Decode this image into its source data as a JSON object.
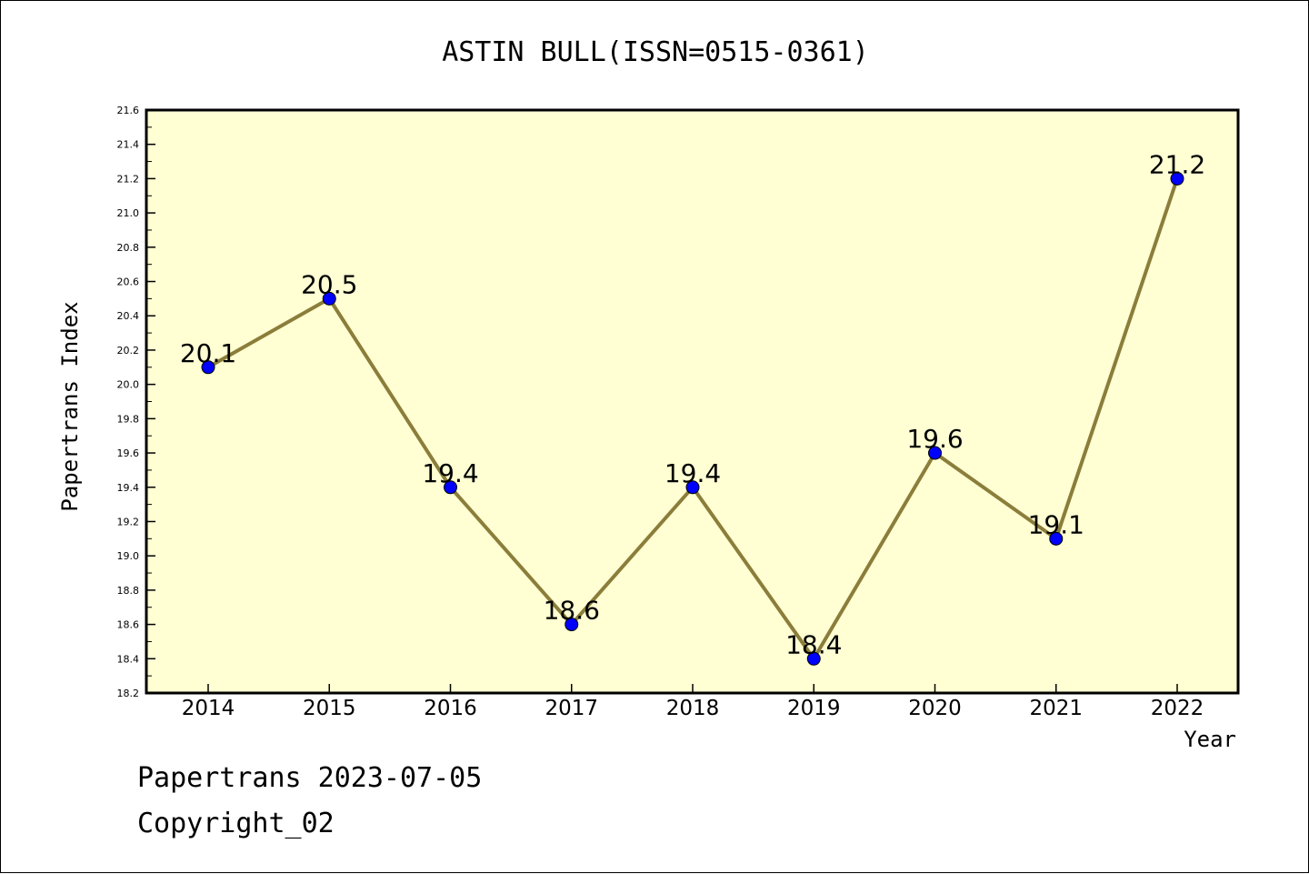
{
  "chart_data": {
    "type": "line",
    "title": "ASTIN BULL(ISSN=0515-0361)",
    "xlabel": "Year",
    "ylabel": "Papertrans Index",
    "x": [
      "2014",
      "2015",
      "2016",
      "2017",
      "2018",
      "2019",
      "2020",
      "2021",
      "2022"
    ],
    "series": [
      {
        "values": [
          20.1,
          20.5,
          19.4,
          18.6,
          19.4,
          18.4,
          19.6,
          19.1,
          21.2
        ],
        "labels": [
          "20.1",
          "20.5",
          "19.4",
          "18.6",
          "19.4",
          "18.4",
          "19.6",
          "19.1",
          "21.2"
        ]
      }
    ],
    "ylim": [
      18.2,
      21.6
    ],
    "yticks": [
      "18.2",
      "18.4",
      "18.6",
      "18.8",
      "19.0",
      "19.2",
      "19.4",
      "19.6",
      "19.8",
      "20.0",
      "20.2",
      "20.4",
      "20.6",
      "20.8",
      "21.0",
      "21.2",
      "21.4",
      "21.6"
    ],
    "grid": false,
    "plot_bg": "#ffffd3",
    "line_color": "#8b7d3a",
    "marker_color": "#0000ff"
  },
  "footer": {
    "line1": "Papertrans 2023-07-05",
    "line2": "Copyright_02"
  }
}
